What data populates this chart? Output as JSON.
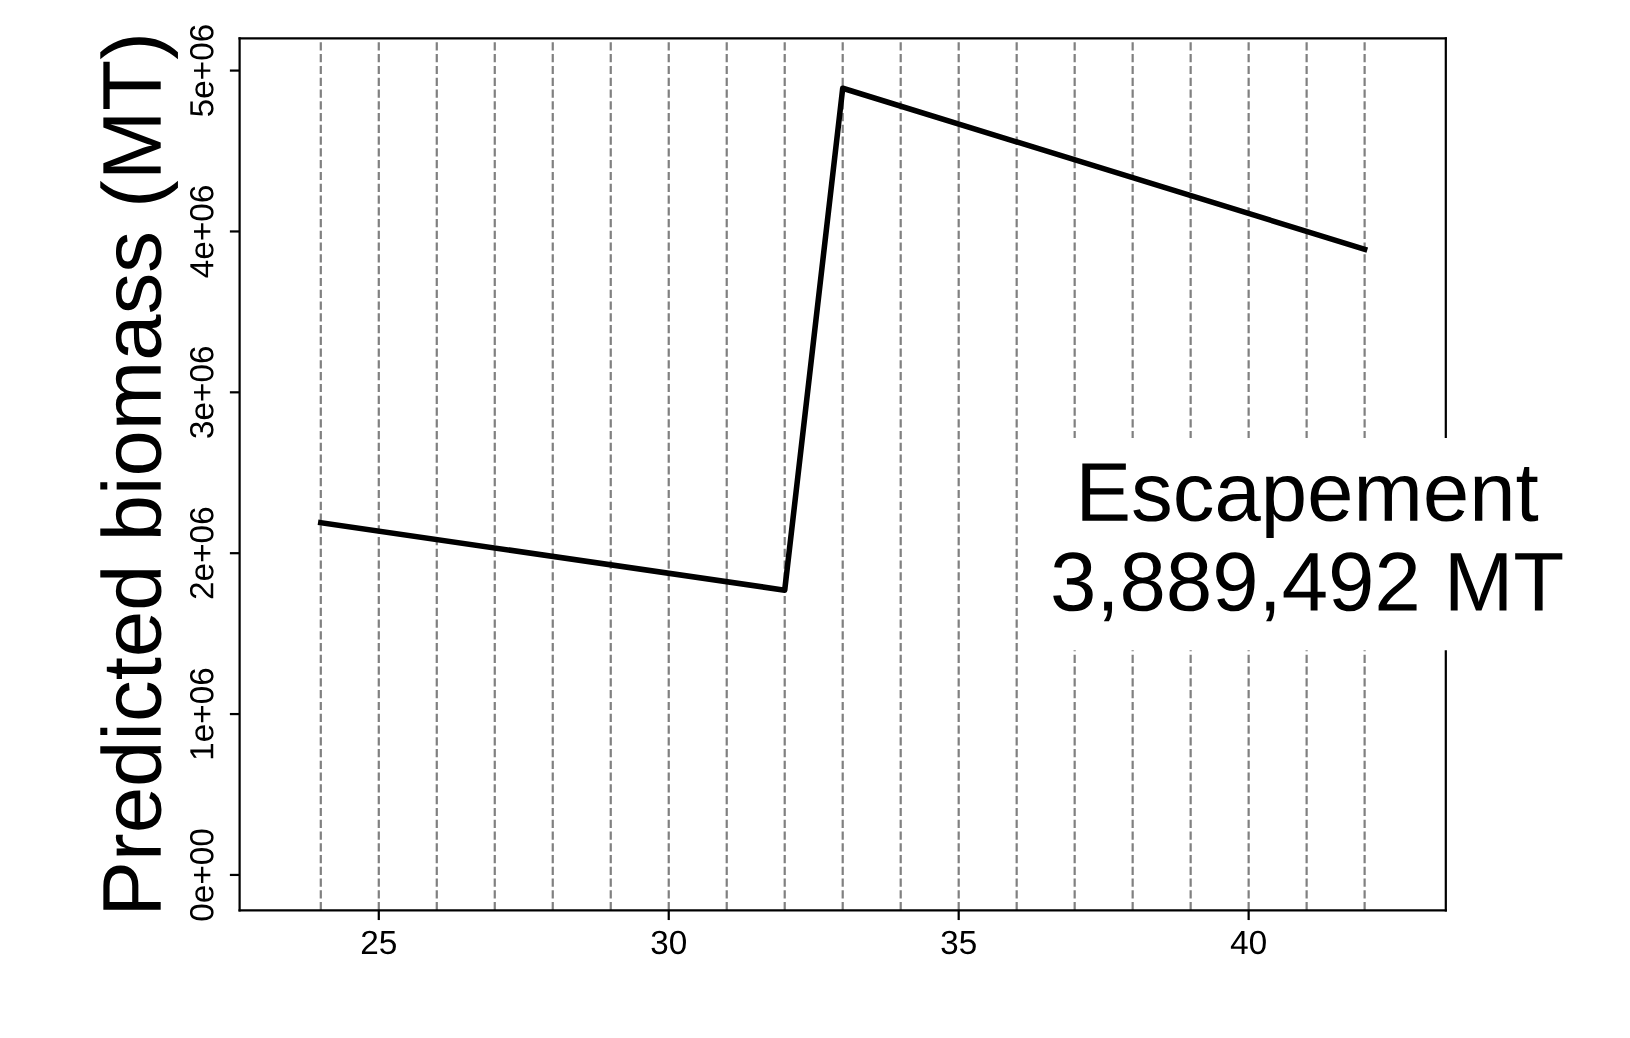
{
  "chart_data": {
    "type": "line",
    "ylabel": "Predicted biomass (MT)",
    "x": [
      24,
      32,
      33,
      42
    ],
    "series": [
      {
        "color": "#000000",
        "values": [
          2190000,
          1770000,
          4890000,
          3889492
        ]
      }
    ],
    "xlim": [
      22.6,
      43.4
    ],
    "xticks": [
      25,
      30,
      35,
      40
    ],
    "ylim": [
      -220000,
      5200000
    ],
    "yticks": [
      {
        "value": 0,
        "label": "0e+00"
      },
      {
        "value": 1000000,
        "label": "1e+06"
      },
      {
        "value": 2000000,
        "label": "2e+06"
      },
      {
        "value": 3000000,
        "label": "3e+06"
      },
      {
        "value": 4000000,
        "label": "4e+06"
      },
      {
        "value": 5000000,
        "label": "5e+06"
      }
    ],
    "ref_lines": [
      {
        "axis": "x",
        "value": 24,
        "line_style": "dashed",
        "color": "#808080"
      },
      {
        "axis": "x",
        "value": 25,
        "line_style": "dashed",
        "color": "#808080"
      },
      {
        "axis": "x",
        "value": 26,
        "line_style": "dashed",
        "color": "#808080"
      },
      {
        "axis": "x",
        "value": 27,
        "line_style": "dashed",
        "color": "#808080"
      },
      {
        "axis": "x",
        "value": 28,
        "line_style": "dashed",
        "color": "#808080"
      },
      {
        "axis": "x",
        "value": 29,
        "line_style": "dashed",
        "color": "#808080"
      },
      {
        "axis": "x",
        "value": 30,
        "line_style": "dashed",
        "color": "#808080"
      },
      {
        "axis": "x",
        "value": 31,
        "line_style": "dashed",
        "color": "#808080"
      },
      {
        "axis": "x",
        "value": 32,
        "line_style": "dashed",
        "color": "#808080"
      },
      {
        "axis": "x",
        "value": 33,
        "line_style": "dashed",
        "color": "#808080"
      },
      {
        "axis": "x",
        "value": 34,
        "line_style": "dashed",
        "color": "#808080"
      },
      {
        "axis": "x",
        "value": 35,
        "line_style": "dashed",
        "color": "#808080"
      },
      {
        "axis": "x",
        "value": 36,
        "line_style": "dashed",
        "color": "#808080"
      },
      {
        "axis": "x",
        "value": 37,
        "line_style": "dashed",
        "color": "#808080"
      },
      {
        "axis": "x",
        "value": 38,
        "line_style": "dashed",
        "color": "#808080"
      },
      {
        "axis": "x",
        "value": 39,
        "line_style": "dashed",
        "color": "#808080"
      },
      {
        "axis": "x",
        "value": 40,
        "line_style": "dashed",
        "color": "#808080"
      },
      {
        "axis": "x",
        "value": 41,
        "line_style": "dashed",
        "color": "#808080"
      },
      {
        "axis": "x",
        "value": 42,
        "line_style": "dashed",
        "color": "#808080"
      }
    ],
    "annotations": [
      "Escapement\n3,889,492 MT"
    ],
    "line_style": "solid",
    "marker": "none",
    "grid": false,
    "legend": false
  }
}
